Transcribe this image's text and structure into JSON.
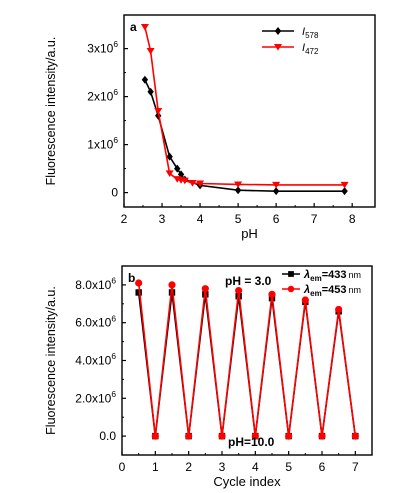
{
  "chart_data": [
    {
      "type": "line",
      "panel_label": "a",
      "xlabel": "pH",
      "ylabel": "Fluorescence intensity/a.u.",
      "xlim": [
        2,
        8.6
      ],
      "ylim": [
        -300000,
        3700000
      ],
      "x_ticks": [
        {
          "v": 2,
          "label": "2"
        },
        {
          "v": 3,
          "label": "3"
        },
        {
          "v": 4,
          "label": "4"
        },
        {
          "v": 5,
          "label": "5"
        },
        {
          "v": 6,
          "label": "6"
        },
        {
          "v": 7,
          "label": "7"
        },
        {
          "v": 8,
          "label": "8"
        }
      ],
      "y_ticks": [
        {
          "v": 0,
          "label": "0"
        },
        {
          "v": 1000000,
          "label": "1x10^6"
        },
        {
          "v": 2000000,
          "label": "2x10^6"
        },
        {
          "v": 3000000,
          "label": "3x10^6"
        }
      ],
      "legend_position": "top-right",
      "series": [
        {
          "name": "I578",
          "legend_main": "I",
          "legend_sub": "578",
          "color": "#000000",
          "marker": "diamond",
          "x": [
            2.55,
            2.7,
            2.9,
            3.2,
            3.4,
            3.5,
            3.6,
            4.0,
            5.0,
            6.0,
            7.8
          ],
          "y": [
            2350000,
            2100000,
            1600000,
            750000,
            500000,
            380000,
            270000,
            150000,
            50000,
            30000,
            30000
          ]
        },
        {
          "name": "I472",
          "legend_main": "I",
          "legend_sub": "472",
          "color": "#ff0000",
          "marker": "triangle-down",
          "x": [
            2.55,
            2.7,
            2.9,
            3.2,
            3.4,
            3.5,
            3.6,
            3.8,
            4.0,
            5.0,
            6.0,
            7.8
          ],
          "y": [
            3450000,
            2950000,
            1700000,
            400000,
            280000,
            260000,
            250000,
            200000,
            190000,
            170000,
            160000,
            160000
          ]
        }
      ]
    },
    {
      "type": "line",
      "panel_label": "b",
      "xlabel": "Cycle index",
      "ylabel": "Fluorescence intensity/a.u.",
      "xlim": [
        0,
        7.5
      ],
      "ylim": [
        -1000000,
        9000000
      ],
      "x_ticks": [
        {
          "v": 0,
          "label": "0"
        },
        {
          "v": 1,
          "label": "1"
        },
        {
          "v": 2,
          "label": "2"
        },
        {
          "v": 3,
          "label": "3"
        },
        {
          "v": 4,
          "label": "4"
        },
        {
          "v": 5,
          "label": "5"
        },
        {
          "v": 6,
          "label": "6"
        },
        {
          "v": 7,
          "label": "7"
        }
      ],
      "y_ticks": [
        {
          "v": 0,
          "label": "0.0"
        },
        {
          "v": 2000000,
          "label": "2.0x10^6"
        },
        {
          "v": 4000000,
          "label": "4.0x10^6"
        },
        {
          "v": 6000000,
          "label": "6.0x10^6"
        },
        {
          "v": 8000000,
          "label": "8.0x10^6"
        }
      ],
      "legend_position": "top-right",
      "annotations": {
        "top": "pH = 3.0",
        "bottom": "pH=10.0"
      },
      "series": [
        {
          "name": "λem=433 nm",
          "legend_main": "λ",
          "legend_sub": "em",
          "legend_rest": "=433",
          "legend_unit": "nm",
          "color": "#000000",
          "marker": "square",
          "x": [
            0.5,
            1.0,
            1.5,
            2.0,
            2.5,
            3.0,
            3.5,
            4.0,
            4.5,
            5.0,
            5.5,
            6.0,
            6.5,
            7.0
          ],
          "y": [
            7600000,
            0,
            7600000,
            0,
            7500000,
            0,
            7400000,
            0,
            7300000,
            0,
            7100000,
            0,
            6600000,
            0
          ]
        },
        {
          "name": "λem=453 nm",
          "legend_main": "λ",
          "legend_sub": "em",
          "legend_rest": "=453",
          "legend_unit": "nm",
          "color": "#ff0000",
          "marker": "circle",
          "x": [
            0.5,
            1.0,
            1.5,
            2.0,
            2.5,
            3.0,
            3.5,
            4.0,
            4.5,
            5.0,
            5.5,
            6.0,
            6.5,
            7.0
          ],
          "y": [
            8100000,
            0,
            8000000,
            0,
            7800000,
            0,
            7700000,
            0,
            7500000,
            0,
            7200000,
            0,
            6700000,
            0
          ]
        }
      ]
    }
  ]
}
